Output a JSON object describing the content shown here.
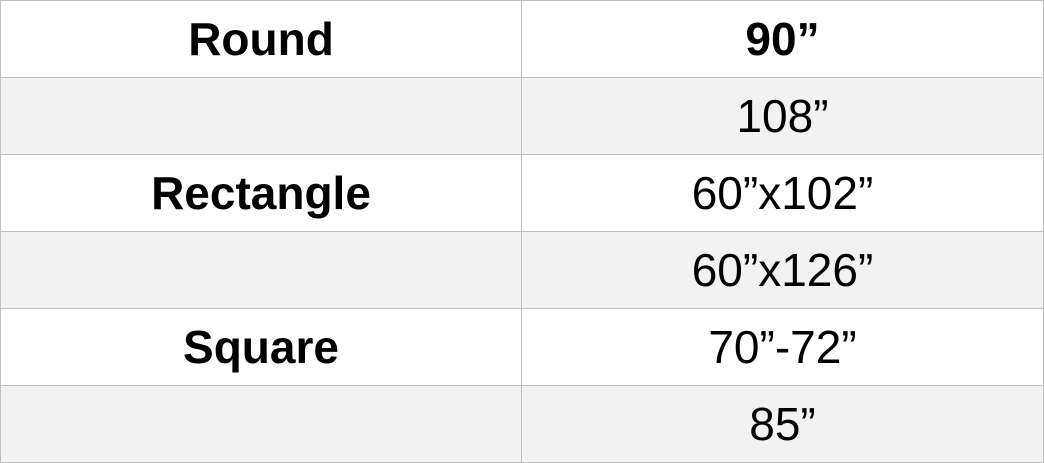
{
  "rows": [
    {
      "type": "Round",
      "size": "90”"
    },
    {
      "type": "",
      "size": "108”"
    },
    {
      "type": "Rectangle",
      "size": "60”x102”"
    },
    {
      "type": "",
      "size": "60”x126”"
    },
    {
      "type": "Square",
      "size": "70”-72”"
    },
    {
      "type": "",
      "size": "85”"
    }
  ]
}
